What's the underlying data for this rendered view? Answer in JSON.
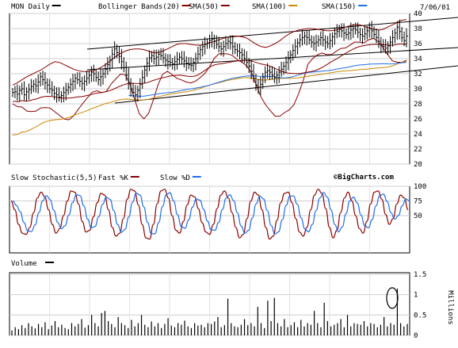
{
  "chart_data": [
    {
      "type": "ohlc",
      "panel": "price",
      "ticker": "MON",
      "period": "Daily",
      "date": "7/06/01",
      "legend": [
        {
          "label": "MON Daily",
          "color": "#000000"
        },
        {
          "label": "Bollinger Bands(20)",
          "color": "#8b0000"
        },
        {
          "label": "SMA(50)",
          "color": "#8b0000"
        },
        {
          "label": "SMA(100)",
          "color": "#cc8800"
        },
        {
          "label": "SMA(150)",
          "color": "#1e6ee8"
        }
      ],
      "ylim": [
        20,
        40
      ],
      "yticks": [
        "20",
        "22",
        "24",
        "26",
        "28",
        "30",
        "32",
        "34",
        "36",
        "38",
        "40"
      ],
      "grid": true,
      "close": [
        29.5,
        29.6,
        29.3,
        29.8,
        30.0,
        29.2,
        29.6,
        29.9,
        30.3,
        30.6,
        30.4,
        30.9,
        31.6,
        31.2,
        30.8,
        30.5,
        30.0,
        29.8,
        29.4,
        29.2,
        28.9,
        29.1,
        29.5,
        29.8,
        30.2,
        30.6,
        31.0,
        31.4,
        31.2,
        31.0,
        30.7,
        31.0,
        31.4,
        31.8,
        32.2,
        32.0,
        31.5,
        31.2,
        31.6,
        32.0,
        32.6,
        33.2,
        33.8,
        34.6,
        35.3,
        34.8,
        34.3,
        33.6,
        32.8,
        31.8,
        30.8,
        30.0,
        29.5,
        29.2,
        29.8,
        30.6,
        31.5,
        32.5,
        33.4,
        34.1,
        34.4,
        34.0,
        34.2,
        34.6,
        34.4,
        34.1,
        33.8,
        33.6,
        33.5,
        33.3,
        33.6,
        33.9,
        34.2,
        34.0,
        33.7,
        33.4,
        33.2,
        33.1,
        33.5,
        34.0,
        34.6,
        35.2,
        35.6,
        35.9,
        36.1,
        36.4,
        36.6,
        36.3,
        35.9,
        35.6,
        35.3,
        35.6,
        36.0,
        36.3,
        36.1,
        35.6,
        35.2,
        35.0,
        34.8,
        34.5,
        34.0,
        33.5,
        33.0,
        32.3,
        31.4,
        30.5,
        30.2,
        30.6,
        31.5,
        32.2,
        32.4,
        32.2,
        31.8,
        31.5,
        31.8,
        32.2,
        32.6,
        33.0,
        33.5,
        34.0,
        34.5,
        35.1,
        35.6,
        36.1,
        36.5,
        36.8,
        37.0,
        36.8,
        36.5,
        36.2,
        36.0,
        36.2,
        36.5,
        36.8,
        36.5,
        36.2,
        36.0,
        36.4,
        36.9,
        37.3,
        37.6,
        37.9,
        37.7,
        37.4,
        37.2,
        37.4,
        37.8,
        38.0,
        37.8,
        37.5,
        37.2,
        37.0,
        37.3,
        37.7,
        38.0,
        37.7,
        37.2,
        36.8,
        36.3,
        35.8,
        35.6,
        35.4,
        35.7,
        36.2,
        36.8,
        37.4,
        38.2,
        37.6,
        36.8,
        36.4,
        37.0
      ],
      "bollinger_upper": [
        30.5,
        30.8,
        31.2,
        31.6,
        31.9,
        32.2,
        32.5,
        32.9,
        33.3,
        33.6,
        33.5,
        33.2,
        32.9,
        32.6,
        32.4,
        32.3,
        32.3,
        32.4,
        32.6,
        32.9,
        33.3,
        33.8,
        34.3,
        34.7,
        35.0,
        35.2,
        35.3,
        35.3,
        35.2,
        35.0,
        34.8,
        34.8,
        35.0,
        35.3,
        35.6,
        35.9,
        36.0,
        36.0,
        35.9,
        35.8,
        35.8,
        35.9,
        36.1,
        36.3,
        36.5,
        36.7,
        36.9,
        37.0,
        37.0,
        36.9,
        36.7,
        36.3,
        35.9,
        35.6,
        35.5,
        35.7,
        36.0,
        36.4,
        36.9,
        37.3,
        37.6,
        37.8,
        37.9,
        38.0,
        38.0,
        37.9,
        37.8,
        37.7,
        37.7,
        37.8,
        38.0,
        38.2,
        38.4,
        38.5,
        38.5,
        38.3,
        38.1,
        37.9,
        37.8,
        37.9,
        38.2,
        38.5,
        38.8,
        39.1,
        39.2
      ]
    },
    {
      "type": "line",
      "panel": "stochastic",
      "title": "Slow Stochastic(5,5)",
      "legend": [
        {
          "label": "Fast %K",
          "color": "#8b0000"
        },
        {
          "label": "Slow %D",
          "color": "#1e6ee8"
        }
      ],
      "ylim": [
        0,
        100
      ],
      "yticks": [
        "50",
        "75",
        "100"
      ],
      "watermark": "©BigCharts.com",
      "k": [
        75,
        60,
        35,
        20,
        18,
        30,
        55,
        80,
        90,
        82,
        60,
        35,
        20,
        28,
        50,
        75,
        92,
        90,
        70,
        40,
        22,
        25,
        48,
        72,
        88,
        85,
        60,
        30,
        15,
        20,
        45,
        78,
        95,
        92,
        68,
        35,
        12,
        10,
        35,
        70,
        92,
        95,
        80,
        50,
        25,
        20,
        40,
        68,
        85,
        82,
        62,
        38,
        22,
        18,
        35,
        62,
        85,
        92,
        80,
        55,
        30,
        12,
        18,
        45,
        75,
        90,
        85,
        60,
        30,
        10,
        15,
        42,
        72,
        88,
        90,
        72,
        45,
        22,
        15,
        30,
        60,
        85,
        95,
        88,
        62,
        30,
        12,
        25,
        55,
        80,
        90,
        75,
        50,
        28,
        20,
        40,
        70,
        90,
        92,
        78,
        52,
        35,
        45,
        70,
        85,
        80,
        60
      ]
    },
    {
      "type": "bar",
      "panel": "volume",
      "title": "Volume",
      "ylim": [
        0,
        1.5
      ],
      "yticks": [
        "0",
        "0.5",
        "1",
        "1.5"
      ],
      "ylabel": "Millions",
      "values": [
        0.12,
        0.2,
        0.15,
        0.25,
        0.18,
        0.3,
        0.22,
        0.17,
        0.28,
        0.2,
        0.32,
        0.15,
        0.24,
        0.35,
        0.2,
        0.26,
        0.18,
        0.15,
        0.3,
        0.22,
        0.28,
        0.4,
        0.19,
        0.25,
        0.5,
        0.3,
        0.22,
        0.55,
        0.6,
        0.35,
        0.28,
        0.2,
        0.45,
        0.3,
        0.25,
        0.18,
        0.38,
        0.22,
        0.3,
        0.5,
        0.26,
        0.2,
        0.34,
        0.22,
        0.3,
        0.18,
        0.28,
        0.42,
        0.24,
        0.2,
        0.3,
        0.26,
        0.36,
        0.22,
        0.18,
        0.3,
        0.24,
        0.26,
        0.2,
        0.3,
        0.28,
        0.34,
        0.45,
        0.2,
        0.25,
        0.9,
        0.3,
        0.22,
        0.2,
        0.26,
        0.4,
        0.25,
        0.3,
        0.22,
        0.7,
        0.3,
        0.18,
        0.85,
        0.35,
        0.92,
        0.3,
        0.22,
        0.4,
        0.2,
        0.25,
        0.32,
        0.2,
        0.38,
        0.22,
        0.3,
        0.26,
        0.6,
        0.3,
        0.2,
        0.8,
        0.35,
        0.22,
        0.26,
        0.3,
        0.4,
        0.2,
        0.5,
        0.22,
        0.3,
        0.28,
        0.26,
        0.35,
        0.22,
        0.3,
        0.28,
        0.2,
        0.26,
        0.45,
        0.22,
        0.3,
        0.26,
        1.15,
        0.3,
        0.22,
        0.28
      ]
    }
  ]
}
